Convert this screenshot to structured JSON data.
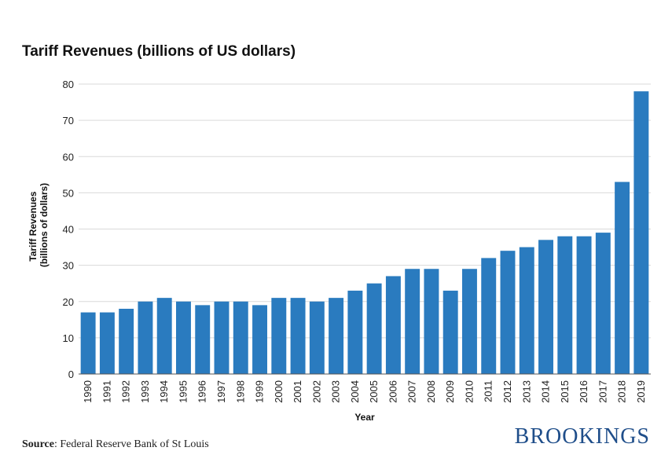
{
  "chart_data": {
    "type": "bar",
    "title": "Tariff Revenues (billions of US dollars)",
    "xlabel": "Year",
    "ylabel": "Tariff Revenues (billions of dollars)",
    "ylabel_lines": [
      "Tariff Revenues",
      "(billions of dollars)"
    ],
    "ylim": [
      0,
      80
    ],
    "yticks": [
      0,
      10,
      20,
      30,
      40,
      50,
      60,
      70,
      80
    ],
    "grid": true,
    "bar_color": "#2a7bbf",
    "categories": [
      "1990",
      "1991",
      "1992",
      "1993",
      "1994",
      "1995",
      "1996",
      "1997",
      "1998",
      "1999",
      "2000",
      "2001",
      "2002",
      "2003",
      "2004",
      "2005",
      "2006",
      "2007",
      "2008",
      "2009",
      "2010",
      "2011",
      "2012",
      "2013",
      "2014",
      "2015",
      "2016",
      "2017",
      "2018",
      "2019"
    ],
    "values": [
      17,
      17,
      18,
      20,
      21,
      20,
      19,
      20,
      20,
      19,
      21,
      21,
      20,
      21,
      23,
      25,
      27,
      29,
      29,
      23,
      29,
      32,
      34,
      35,
      37,
      38,
      38,
      39,
      53,
      78
    ]
  },
  "source": {
    "label": "Source",
    "text": ": Federal Reserve Bank of St Louis"
  },
  "brand": "BROOKINGS"
}
